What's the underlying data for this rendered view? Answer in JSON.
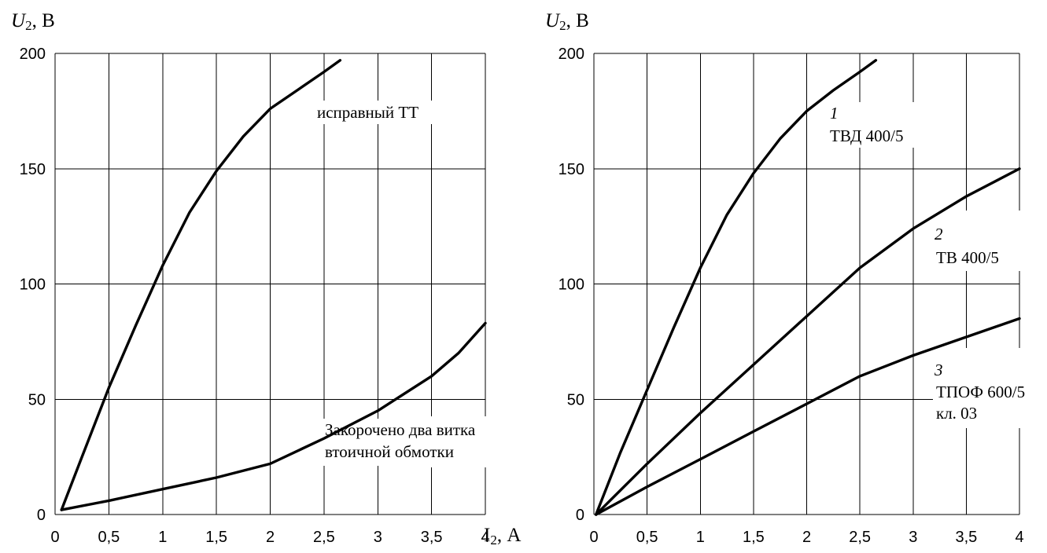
{
  "chart_data": [
    {
      "type": "line",
      "ylabel_var": "U",
      "ylabel_sub": "2",
      "ylabel_unit": ", В",
      "xlabel_var": "I",
      "xlabel_sub": "2",
      "xlabel_unit": ", А",
      "xlim": [
        0,
        4
      ],
      "ylim": [
        0,
        200
      ],
      "x_ticks": [
        "0",
        "0,5",
        "1",
        "1,5",
        "2",
        "2,5",
        "3",
        "3,5",
        "4"
      ],
      "y_ticks": [
        "0",
        "50",
        "100",
        "150",
        "200"
      ],
      "grid": true,
      "series": [
        {
          "points": [
            [
              0.06,
              2
            ],
            [
              0.25,
              25
            ],
            [
              0.5,
              55
            ],
            [
              0.75,
              82
            ],
            [
              1.0,
              108
            ],
            [
              1.25,
              131
            ],
            [
              1.5,
              149
            ],
            [
              1.75,
              164
            ],
            [
              2.0,
              176
            ],
            [
              2.25,
              184
            ],
            [
              2.5,
              192
            ],
            [
              2.65,
              197
            ]
          ]
        },
        {
          "points": [
            [
              0.06,
              2
            ],
            [
              0.5,
              6
            ],
            [
              1.0,
              11
            ],
            [
              1.5,
              16
            ],
            [
              2.0,
              22
            ],
            [
              2.5,
              33
            ],
            [
              3.0,
              45
            ],
            [
              3.5,
              60
            ],
            [
              3.75,
              70
            ],
            [
              4.0,
              83
            ]
          ]
        }
      ],
      "annotations": [
        {
          "text": "исправный ТТ"
        },
        {
          "line1": "Закорочено два витка",
          "line2": "втоичной обмотки"
        }
      ]
    },
    {
      "type": "line",
      "ylabel_var": "U",
      "ylabel_sub": "2",
      "ylabel_unit": ", В",
      "xlim": [
        0,
        4
      ],
      "ylim": [
        0,
        200
      ],
      "x_ticks": [
        "0",
        "0,5",
        "1",
        "1,5",
        "2",
        "2,5",
        "3",
        "3,5",
        "4"
      ],
      "y_ticks": [
        "0",
        "50",
        "100",
        "150",
        "200"
      ],
      "grid": true,
      "series": [
        {
          "points": [
            [
              0.02,
              0
            ],
            [
              0.25,
              27
            ],
            [
              0.5,
              54
            ],
            [
              0.75,
              81
            ],
            [
              1.0,
              107
            ],
            [
              1.25,
              130
            ],
            [
              1.5,
              148
            ],
            [
              1.75,
              163
            ],
            [
              2.0,
              175
            ],
            [
              2.25,
              184
            ],
            [
              2.5,
              192
            ],
            [
              2.65,
              197
            ]
          ]
        },
        {
          "points": [
            [
              0.02,
              0
            ],
            [
              0.5,
              22
            ],
            [
              1.0,
              44
            ],
            [
              1.5,
              65
            ],
            [
              2.0,
              86
            ],
            [
              2.5,
              107
            ],
            [
              3.0,
              124
            ],
            [
              3.5,
              138
            ],
            [
              4.0,
              150
            ]
          ]
        },
        {
          "points": [
            [
              0.02,
              0
            ],
            [
              0.5,
              12
            ],
            [
              1.0,
              24
            ],
            [
              1.5,
              36
            ],
            [
              2.0,
              48
            ],
            [
              2.5,
              60
            ],
            [
              3.0,
              69
            ],
            [
              3.5,
              77
            ],
            [
              4.0,
              85
            ]
          ]
        }
      ],
      "annotations": [
        {
          "num": "1",
          "label": "ТВД 400/5"
        },
        {
          "num": "2",
          "label": "ТВ 400/5"
        },
        {
          "num": "3",
          "label": "ТПОФ 600/5",
          "label2": "кл. 03"
        }
      ]
    }
  ]
}
